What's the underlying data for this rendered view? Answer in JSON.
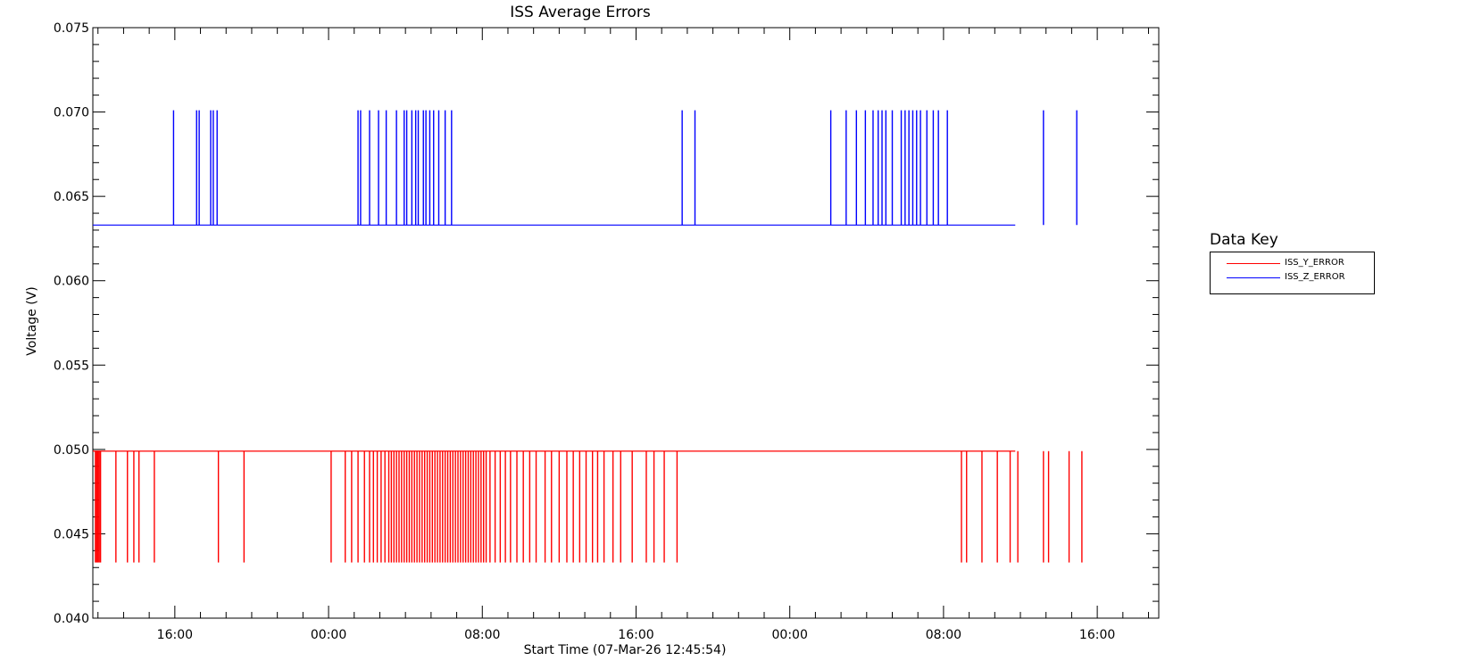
{
  "chart_data": {
    "type": "line",
    "title": "ISS Average Errors",
    "xlabel": "Start Time (07-Mar-26 12:45:54)",
    "ylabel": "Voltage (V)",
    "x_unit": "hours",
    "xlim": [
      -3.2,
      38.4
    ],
    "ylim": [
      0.04,
      0.075
    ],
    "x_tick_values": [
      0,
      6,
      12,
      18,
      24,
      30,
      36
    ],
    "x_tick_labels": [
      "16:00",
      "00:00",
      "08:00",
      "16:00",
      "00:00",
      "08:00",
      "16:00"
    ],
    "y_ticks": [
      "0.040",
      "0.045",
      "0.050",
      "0.055",
      "0.060",
      "0.065",
      "0.070",
      "0.075"
    ],
    "grid": false,
    "legend_position": "right",
    "legend_title": "Data Key",
    "series": [
      {
        "name": "ISS_Y_ERROR",
        "color": "#ff0000",
        "x_end": 32.8,
        "baseline": 0.0499,
        "spike_value": 0.0433,
        "spike_times": [
          -3.1,
          -3.05,
          -3.0,
          -2.95,
          -2.9,
          -2.3,
          -1.85,
          -1.6,
          -1.4,
          -0.8,
          1.7,
          2.7,
          6.1,
          6.65,
          6.9,
          7.15,
          7.4,
          7.6,
          7.75,
          7.9,
          8.05,
          8.2,
          8.35,
          8.45,
          8.55,
          8.65,
          8.75,
          8.85,
          8.95,
          9.05,
          9.15,
          9.25,
          9.35,
          9.45,
          9.55,
          9.65,
          9.75,
          9.85,
          9.95,
          10.05,
          10.15,
          10.25,
          10.35,
          10.45,
          10.55,
          10.65,
          10.75,
          10.85,
          10.95,
          11.05,
          11.15,
          11.25,
          11.35,
          11.45,
          11.55,
          11.65,
          11.75,
          11.85,
          11.95,
          12.05,
          12.15,
          12.3,
          12.5,
          12.7,
          12.9,
          13.1,
          13.35,
          13.6,
          13.85,
          14.1,
          14.45,
          14.7,
          15.0,
          15.3,
          15.55,
          15.8,
          16.05,
          16.3,
          16.5,
          16.75,
          17.1,
          17.4,
          17.85,
          18.4,
          18.7,
          19.1,
          19.6,
          30.7,
          30.9,
          31.5,
          32.1,
          32.6,
          32.9,
          33.9,
          34.1,
          34.9,
          35.4
        ],
        "spike_times_note": "times in hours relative to 16:00 tick"
      },
      {
        "name": "ISS_Z_ERROR",
        "color": "#0000ff",
        "x_end": 32.8,
        "baseline": 0.0633,
        "spike_value": 0.0701,
        "spike_times": [
          -0.05,
          0.85,
          0.95,
          1.4,
          1.5,
          1.65,
          7.15,
          7.25,
          7.6,
          7.95,
          8.25,
          8.65,
          8.95,
          9.05,
          9.25,
          9.4,
          9.5,
          9.7,
          9.8,
          9.95,
          10.1,
          10.3,
          10.55,
          10.8,
          19.8,
          20.3,
          25.6,
          26.2,
          26.6,
          26.95,
          27.25,
          27.45,
          27.6,
          27.75,
          28.0,
          28.35,
          28.5,
          28.65,
          28.8,
          28.95,
          29.1,
          29.35,
          29.6,
          29.8,
          30.15,
          33.9,
          35.2
        ]
      }
    ]
  }
}
